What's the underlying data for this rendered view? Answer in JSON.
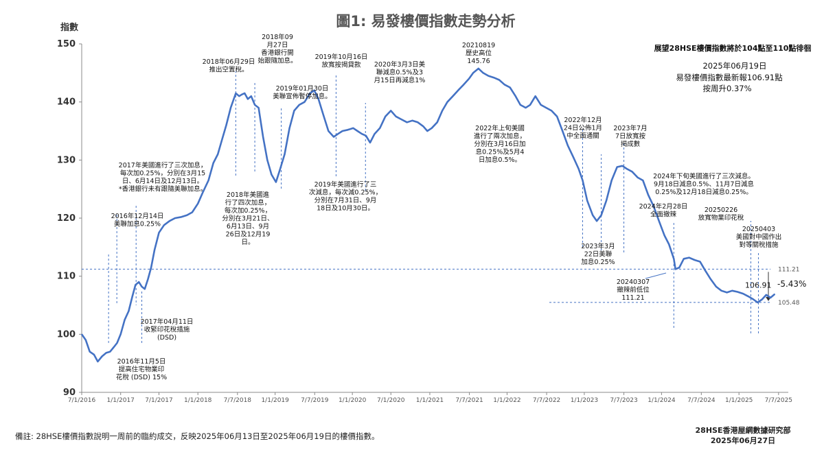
{
  "chart_data": {
    "type": "line",
    "title": "圖1: 易發樓價指數走勢分析",
    "ylabel": "指數",
    "xlabel": "",
    "ylim": [
      90,
      150
    ],
    "yticks": [
      "90",
      "100",
      "110",
      "120",
      "130",
      "140",
      "150"
    ],
    "xticks": [
      "7/1/2016",
      "1/1/2017",
      "7/1/2017",
      "1/1/2018",
      "7/7/2018",
      "1/1/2019",
      "7/7/2019",
      "1/1/2020",
      "7/1/2020",
      "1/1/2021",
      "7/7/2021",
      "1/1/2022",
      "7/7/2022",
      "1/1/2023",
      "7/7/2023",
      "1/1/2024",
      "7/7/2024",
      "1/1/2025",
      "7/7/2025"
    ],
    "grid": false,
    "line_color": "#4472C4",
    "series": [
      {
        "values": [
          {
            "x": "2016-07-01",
            "y": 100.0
          },
          {
            "x": "2016-07-20",
            "y": 99.0
          },
          {
            "x": "2016-08-08",
            "y": 97.0
          },
          {
            "x": "2016-08-28",
            "y": 96.5
          },
          {
            "x": "2016-09-15",
            "y": 95.3
          },
          {
            "x": "2016-10-05",
            "y": 96.2
          },
          {
            "x": "2016-10-25",
            "y": 96.8
          },
          {
            "x": "2016-11-12",
            "y": 97.0
          },
          {
            "x": "2016-11-30",
            "y": 97.8
          },
          {
            "x": "2016-12-15",
            "y": 98.5
          },
          {
            "x": "2017-01-01",
            "y": 100.0
          },
          {
            "x": "2017-01-20",
            "y": 102.5
          },
          {
            "x": "2017-02-08",
            "y": 104.0
          },
          {
            "x": "2017-02-25",
            "y": 106.5
          },
          {
            "x": "2017-03-12",
            "y": 108.5
          },
          {
            "x": "2017-03-28",
            "y": 109.0
          },
          {
            "x": "2017-04-11",
            "y": 108.2
          },
          {
            "x": "2017-04-25",
            "y": 107.8
          },
          {
            "x": "2017-05-10",
            "y": 109.5
          },
          {
            "x": "2017-05-25",
            "y": 111.5
          },
          {
            "x": "2017-06-10",
            "y": 114.5
          },
          {
            "x": "2017-07-01",
            "y": 117.5
          },
          {
            "x": "2017-07-25",
            "y": 118.8
          },
          {
            "x": "2017-08-20",
            "y": 119.5
          },
          {
            "x": "2017-09-15",
            "y": 120.0
          },
          {
            "x": "2017-10-15",
            "y": 120.2
          },
          {
            "x": "2017-11-10",
            "y": 120.5
          },
          {
            "x": "2017-12-05",
            "y": 121.0
          },
          {
            "x": "2018-01-01",
            "y": 122.5
          },
          {
            "x": "2018-01-25",
            "y": 124.5
          },
          {
            "x": "2018-02-20",
            "y": 126.5
          },
          {
            "x": "2018-03-15",
            "y": 129.5
          },
          {
            "x": "2018-04-05",
            "y": 131.0
          },
          {
            "x": "2018-04-25",
            "y": 133.5
          },
          {
            "x": "2018-05-15",
            "y": 136.0
          },
          {
            "x": "2018-06-05",
            "y": 139.0
          },
          {
            "x": "2018-06-29",
            "y": 141.5
          },
          {
            "x": "2018-07-15",
            "y": 141.0
          },
          {
            "x": "2018-07-28",
            "y": 141.3
          },
          {
            "x": "2018-08-10",
            "y": 141.5
          },
          {
            "x": "2018-08-25",
            "y": 140.5
          },
          {
            "x": "2018-09-10",
            "y": 141.0
          },
          {
            "x": "2018-09-27",
            "y": 139.5
          },
          {
            "x": "2018-10-15",
            "y": 139.0
          },
          {
            "x": "2018-11-05",
            "y": 134.0
          },
          {
            "x": "2018-11-25",
            "y": 130.0
          },
          {
            "x": "2018-12-15",
            "y": 127.5
          },
          {
            "x": "2019-01-05",
            "y": 126.2
          },
          {
            "x": "2019-01-25",
            "y": 128.5
          },
          {
            "x": "2019-02-15",
            "y": 131.0
          },
          {
            "x": "2019-03-10",
            "y": 135.5
          },
          {
            "x": "2019-04-01",
            "y": 138.5
          },
          {
            "x": "2019-04-25",
            "y": 139.5
          },
          {
            "x": "2019-05-20",
            "y": 140.0
          },
          {
            "x": "2019-06-15",
            "y": 141.5
          },
          {
            "x": "2019-07-05",
            "y": 142.0
          },
          {
            "x": "2019-07-25",
            "y": 140.5
          },
          {
            "x": "2019-08-15",
            "y": 138.0
          },
          {
            "x": "2019-09-10",
            "y": 135.0
          },
          {
            "x": "2019-10-05",
            "y": 134.0
          },
          {
            "x": "2019-10-25",
            "y": 134.5
          },
          {
            "x": "2019-11-15",
            "y": 135.0
          },
          {
            "x": "2019-12-10",
            "y": 135.2
          },
          {
            "x": "2020-01-05",
            "y": 135.5
          },
          {
            "x": "2020-01-25",
            "y": 135.0
          },
          {
            "x": "2020-02-15",
            "y": 134.5
          },
          {
            "x": "2020-03-05",
            "y": 134.2
          },
          {
            "x": "2020-03-25",
            "y": 133.0
          },
          {
            "x": "2020-04-15",
            "y": 134.5
          },
          {
            "x": "2020-05-10",
            "y": 135.5
          },
          {
            "x": "2020-06-05",
            "y": 137.5
          },
          {
            "x": "2020-07-01",
            "y": 138.5
          },
          {
            "x": "2020-07-25",
            "y": 137.5
          },
          {
            "x": "2020-08-20",
            "y": 137.0
          },
          {
            "x": "2020-09-15",
            "y": 136.5
          },
          {
            "x": "2020-10-10",
            "y": 136.8
          },
          {
            "x": "2020-11-05",
            "y": 136.5
          },
          {
            "x": "2020-12-01",
            "y": 135.8
          },
          {
            "x": "2020-12-20",
            "y": 135.0
          },
          {
            "x": "2021-01-10",
            "y": 135.5
          },
          {
            "x": "2021-02-05",
            "y": 136.5
          },
          {
            "x": "2021-03-01",
            "y": 138.5
          },
          {
            "x": "2021-03-25",
            "y": 140.0
          },
          {
            "x": "2021-04-20",
            "y": 141.0
          },
          {
            "x": "2021-05-15",
            "y": 142.0
          },
          {
            "x": "2021-06-10",
            "y": 143.0
          },
          {
            "x": "2021-07-05",
            "y": 144.0
          },
          {
            "x": "2021-07-25",
            "y": 145.0
          },
          {
            "x": "2021-08-19",
            "y": 145.76
          },
          {
            "x": "2021-09-10",
            "y": 145.0
          },
          {
            "x": "2021-10-05",
            "y": 144.5
          },
          {
            "x": "2021-10-30",
            "y": 144.2
          },
          {
            "x": "2021-11-25",
            "y": 143.8
          },
          {
            "x": "2021-12-20",
            "y": 143.0
          },
          {
            "x": "2022-01-15",
            "y": 142.5
          },
          {
            "x": "2022-02-10",
            "y": 141.0
          },
          {
            "x": "2022-03-05",
            "y": 139.5
          },
          {
            "x": "2022-03-30",
            "y": 139.0
          },
          {
            "x": "2022-04-20",
            "y": 139.5
          },
          {
            "x": "2022-05-15",
            "y": 141.0
          },
          {
            "x": "2022-06-10",
            "y": 139.5
          },
          {
            "x": "2022-07-05",
            "y": 139.0
          },
          {
            "x": "2022-07-30",
            "y": 138.5
          },
          {
            "x": "2022-08-25",
            "y": 137.5
          },
          {
            "x": "2022-09-20",
            "y": 135.0
          },
          {
            "x": "2022-10-15",
            "y": 132.5
          },
          {
            "x": "2022-11-10",
            "y": 130.5
          },
          {
            "x": "2022-12-05",
            "y": 128.5
          },
          {
            "x": "2022-12-24",
            "y": 126.5
          },
          {
            "x": "2023-01-15",
            "y": 123.0
          },
          {
            "x": "2023-02-10",
            "y": 120.5
          },
          {
            "x": "2023-03-01",
            "y": 119.5
          },
          {
            "x": "2023-03-22",
            "y": 120.5
          },
          {
            "x": "2023-04-15",
            "y": 123.0
          },
          {
            "x": "2023-05-10",
            "y": 126.5
          },
          {
            "x": "2023-06-05",
            "y": 128.8
          },
          {
            "x": "2023-06-30",
            "y": 129.0
          },
          {
            "x": "2023-07-20",
            "y": 128.5
          },
          {
            "x": "2023-08-15",
            "y": 128.0
          },
          {
            "x": "2023-09-10",
            "y": 127.0
          },
          {
            "x": "2023-10-05",
            "y": 126.5
          },
          {
            "x": "2023-10-30",
            "y": 124.0
          },
          {
            "x": "2023-11-25",
            "y": 122.0
          },
          {
            "x": "2023-12-20",
            "y": 119.5
          },
          {
            "x": "2024-01-15",
            "y": 117.0
          },
          {
            "x": "2024-02-05",
            "y": 115.5
          },
          {
            "x": "2024-02-28",
            "y": 113.0
          },
          {
            "x": "2024-03-07",
            "y": 111.21
          },
          {
            "x": "2024-03-25",
            "y": 111.5
          },
          {
            "x": "2024-04-15",
            "y": 113.0
          },
          {
            "x": "2024-05-10",
            "y": 113.2
          },
          {
            "x": "2024-06-05",
            "y": 112.8
          },
          {
            "x": "2024-07-01",
            "y": 112.5
          },
          {
            "x": "2024-07-25",
            "y": 111.0
          },
          {
            "x": "2024-08-20",
            "y": 109.5
          },
          {
            "x": "2024-09-15",
            "y": 108.2
          },
          {
            "x": "2024-10-10",
            "y": 107.5
          },
          {
            "x": "2024-11-05",
            "y": 107.2
          },
          {
            "x": "2024-11-30",
            "y": 107.5
          },
          {
            "x": "2024-12-25",
            "y": 107.3
          },
          {
            "x": "2025-01-20",
            "y": 107.0
          },
          {
            "x": "2025-02-15",
            "y": 106.5
          },
          {
            "x": "2025-03-10",
            "y": 106.0
          },
          {
            "x": "2025-03-30",
            "y": 105.48
          },
          {
            "x": "2025-04-20",
            "y": 106.0
          },
          {
            "x": "2025-05-10",
            "y": 106.8
          },
          {
            "x": "2025-05-30",
            "y": 106.3
          },
          {
            "x": "2025-06-19",
            "y": 106.91
          }
        ]
      }
    ],
    "reference_lines": [
      {
        "y": 111.21,
        "label": "111.21"
      },
      {
        "y": 105.48,
        "label": "105.48"
      }
    ],
    "change_label": "-5.43%",
    "latest_label": "106.91"
  },
  "annotations": {
    "outlook_title": "展望28HSE樓價指數將於104點至110點徘徊",
    "latest_date": "2025年06月19日",
    "latest_line": "易發樓價指數最新報106.91點",
    "latest_change": "按周升0.37%",
    "a_2016_11": [
      "2016年11月5日",
      "提高住宅物業印",
      "花稅 (DSD) 15%"
    ],
    "a_2016_12": [
      "2016年12月14日",
      "美聯加息0.25%"
    ],
    "a_2017_rates": [
      "2017年美國進行了三次加息，",
      "每次加0.25%，分別在3月15",
      "日、6月14日及12月13日。",
      "*香港銀行未有跟隨美聯加息。"
    ],
    "a_2017_04": [
      "2017年04月11日",
      "收緊印花稅措施",
      "(DSD)"
    ],
    "a_2018_rates": [
      "2018年美國進",
      "行了四次加息，",
      "每次加0.25%，",
      "分別在3月21日、",
      "6月13日、9月",
      "26日及12月19",
      "日。"
    ],
    "a_2018_06": [
      "2018年06月29日",
      "推出空置稅。"
    ],
    "a_2018_09": [
      "2018年09",
      "月27日",
      "香港銀行開",
      "始跟隨加息。"
    ],
    "a_2019_01": [
      "2019年01月30日",
      "美聯宣佈暫停加息。"
    ],
    "a_2019_10": [
      "2019年10月16日",
      "放寬按揭貸款"
    ],
    "a_2019_rates": [
      "2019年美國進行了三",
      "次減息，每次減0.25%，",
      "分別在7月31日、9月",
      "18日及10月30日。"
    ],
    "a_2020_03": [
      "2020年3月3日美",
      "聯減息0.5%及3",
      "月15日再減息1%"
    ],
    "a_peak": [
      "20210819",
      "歷史高位",
      "145.76"
    ],
    "a_2022_rates": [
      "2022年上旬美國",
      "進行了兩次加息，",
      "分別在3月16日加",
      "息0.25%及5月4",
      "日加息0.5%。"
    ],
    "a_2022_12": [
      "2022年12月",
      "24日公佈1月",
      "中全面通關"
    ],
    "a_2023_07": [
      "2023年7月",
      "7日放寬按",
      "揭成數"
    ],
    "a_2023_03": [
      "2023年3月",
      "22日美聯",
      "加息0.25%"
    ],
    "a_2024_rates": [
      "2024年下旬美國進行了三次減息。",
      "9月18日減息0.5%、11月7日減息",
      "0.25%及12月18日減息0.25%。"
    ],
    "a_2024_02": [
      "2024年2月28日",
      "全面撤辣"
    ],
    "a_2024_03": [
      "20240307",
      "撤辣前低位",
      "111.21"
    ],
    "a_2025_02": [
      "20250226",
      "放寬物業印花稅"
    ],
    "a_2025_04": [
      "20250403",
      "美國對中國作出",
      "對等關稅措施"
    ]
  },
  "footer": {
    "note": "備註: 28HSE樓價指數說明一周前的臨約成交，反映2025年06月13日至2025年06月19日的樓價指數。",
    "source_line1": "28HSE香港屋網數據研究部",
    "source_line2": "2025年06月27日"
  }
}
